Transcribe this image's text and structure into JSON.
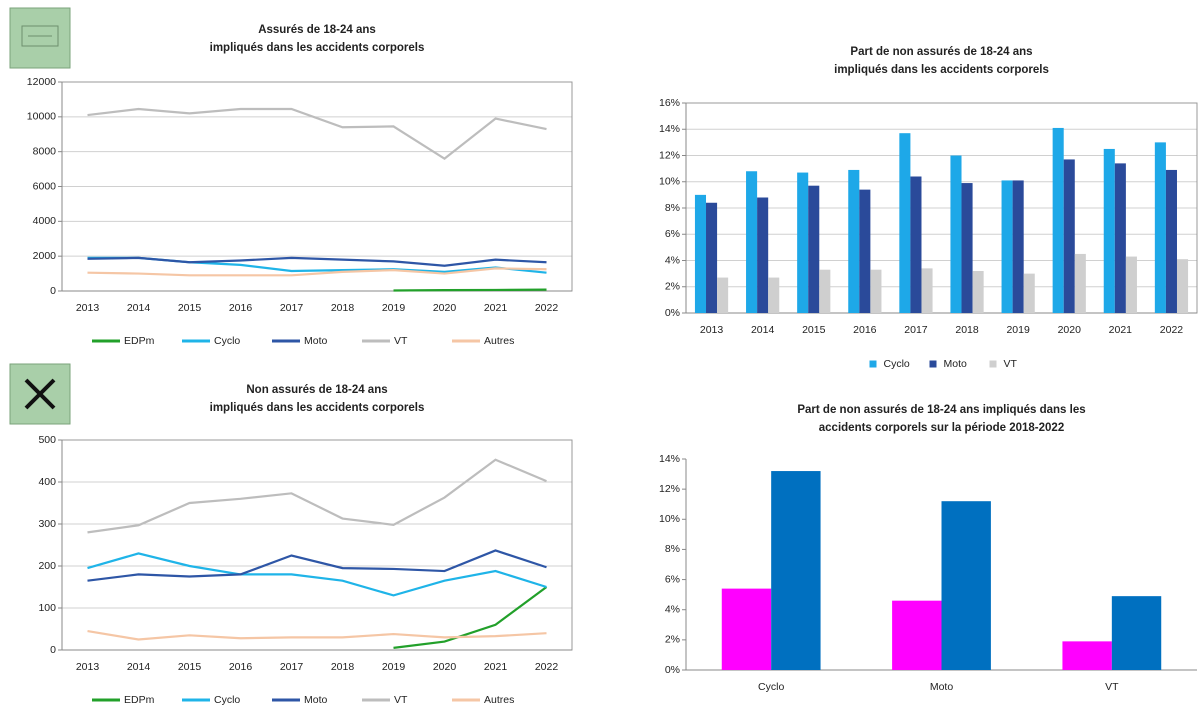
{
  "chart_data": [
    {
      "type": "line",
      "title": [
        "Assurés de 18-24 ans",
        "impliqués dans les accidents corporels"
      ],
      "categories": [
        "2013",
        "2014",
        "2015",
        "2016",
        "2017",
        "2018",
        "2019",
        "2020",
        "2021",
        "2022"
      ],
      "ylim": [
        0,
        12000
      ],
      "yticks": [
        0,
        2000,
        4000,
        6000,
        8000,
        10000,
        12000
      ],
      "grid": true,
      "legend": "bottom",
      "series": [
        {
          "name": "EDPm",
          "color": "#22a02a",
          "values": [
            null,
            null,
            null,
            null,
            null,
            null,
            30,
            50,
            60,
            80
          ]
        },
        {
          "name": "Cyclo",
          "color": "#1fb4e8",
          "values": [
            1900,
            1900,
            1650,
            1500,
            1150,
            1200,
            1250,
            1100,
            1350,
            1050
          ]
        },
        {
          "name": "Moto",
          "color": "#2e56a6",
          "values": [
            1850,
            1900,
            1650,
            1750,
            1900,
            1800,
            1700,
            1450,
            1800,
            1650
          ]
        },
        {
          "name": "VT",
          "color": "#bdbdbd",
          "values": [
            10100,
            10450,
            10200,
            10450,
            10450,
            9400,
            9450,
            7600,
            9900,
            9300
          ]
        },
        {
          "name": "Autres",
          "color": "#f5c6a5",
          "values": [
            1050,
            1000,
            900,
            900,
            900,
            1100,
            1200,
            1000,
            1300,
            1250
          ]
        }
      ]
    },
    {
      "type": "bar",
      "title": [
        "Part de non assurés de 18-24 ans",
        "impliqués dans les accidents corporels"
      ],
      "categories": [
        "2013",
        "2014",
        "2015",
        "2016",
        "2017",
        "2018",
        "2019",
        "2020",
        "2021",
        "2022"
      ],
      "ylim": [
        0,
        16
      ],
      "yticks": [
        {
          "value": 0,
          "label": "0%"
        },
        {
          "value": 2,
          "label": "2%"
        },
        {
          "value": 4,
          "label": "4%"
        },
        {
          "value": 6,
          "label": "6%"
        },
        {
          "value": 8,
          "label": "8%"
        },
        {
          "value": 10,
          "label": "10%"
        },
        {
          "value": 12,
          "label": "12%"
        },
        {
          "value": 14,
          "label": "14%"
        },
        {
          "value": 16,
          "label": "16%"
        }
      ],
      "grid": true,
      "legend": "bottom",
      "series": [
        {
          "name": "Cyclo",
          "color": "#1ea8e8",
          "values": [
            9.0,
            10.8,
            10.7,
            10.9,
            13.7,
            12.0,
            10.1,
            14.1,
            12.5,
            13.0
          ]
        },
        {
          "name": "Moto",
          "color": "#2a4a9a",
          "values": [
            8.4,
            8.8,
            9.7,
            9.4,
            10.4,
            9.9,
            10.1,
            11.7,
            11.4,
            10.9
          ]
        },
        {
          "name": "VT",
          "color": "#cfcfcf",
          "values": [
            2.7,
            2.7,
            3.3,
            3.3,
            3.4,
            3.2,
            3.0,
            4.5,
            4.3,
            4.1
          ]
        }
      ]
    },
    {
      "type": "line",
      "title": [
        "Non assurés de 18-24 ans",
        "impliqués dans les accidents corporels"
      ],
      "categories": [
        "2013",
        "2014",
        "2015",
        "2016",
        "2017",
        "2018",
        "2019",
        "2020",
        "2021",
        "2022"
      ],
      "ylim": [
        0,
        500
      ],
      "yticks": [
        0,
        100,
        200,
        300,
        400,
        500
      ],
      "grid": true,
      "legend": "bottom",
      "series": [
        {
          "name": "EDPm",
          "color": "#22a02a",
          "values": [
            null,
            null,
            null,
            null,
            null,
            null,
            5,
            20,
            60,
            150
          ]
        },
        {
          "name": "Cyclo",
          "color": "#1fb4e8",
          "values": [
            195,
            230,
            200,
            180,
            180,
            165,
            130,
            165,
            188,
            150
          ]
        },
        {
          "name": "Moto",
          "color": "#2e56a6",
          "values": [
            165,
            180,
            175,
            180,
            225,
            195,
            193,
            188,
            237,
            197
          ]
        },
        {
          "name": "VT",
          "color": "#bdbdbd",
          "values": [
            280,
            297,
            350,
            360,
            373,
            313,
            298,
            363,
            453,
            402
          ]
        },
        {
          "name": "Autres",
          "color": "#f5c6a5",
          "values": [
            45,
            25,
            35,
            28,
            30,
            30,
            38,
            30,
            33,
            40
          ]
        }
      ]
    },
    {
      "type": "bar",
      "title": [
        "Part de non assurés de 18-24 ans impliqués dans les",
        "accidents corporels sur la période 2018-2022"
      ],
      "categories": [
        "Cyclo",
        "Moto",
        "VT"
      ],
      "ylim": [
        0,
        14
      ],
      "yticks": [
        {
          "value": 0,
          "label": "0%"
        },
        {
          "value": 2,
          "label": "2%"
        },
        {
          "value": 4,
          "label": "4%"
        },
        {
          "value": 6,
          "label": "6%"
        },
        {
          "value": 8,
          "label": "8%"
        },
        {
          "value": 10,
          "label": "10%"
        },
        {
          "value": 12,
          "label": "12%"
        },
        {
          "value": 14,
          "label": "14%"
        }
      ],
      "grid": false,
      "series": [
        {
          "color": "#ff00ff",
          "values": [
            5.4,
            4.6,
            1.9
          ]
        },
        {
          "color": "#0070c0",
          "values": [
            13.2,
            11.2,
            4.9
          ]
        }
      ]
    }
  ]
}
